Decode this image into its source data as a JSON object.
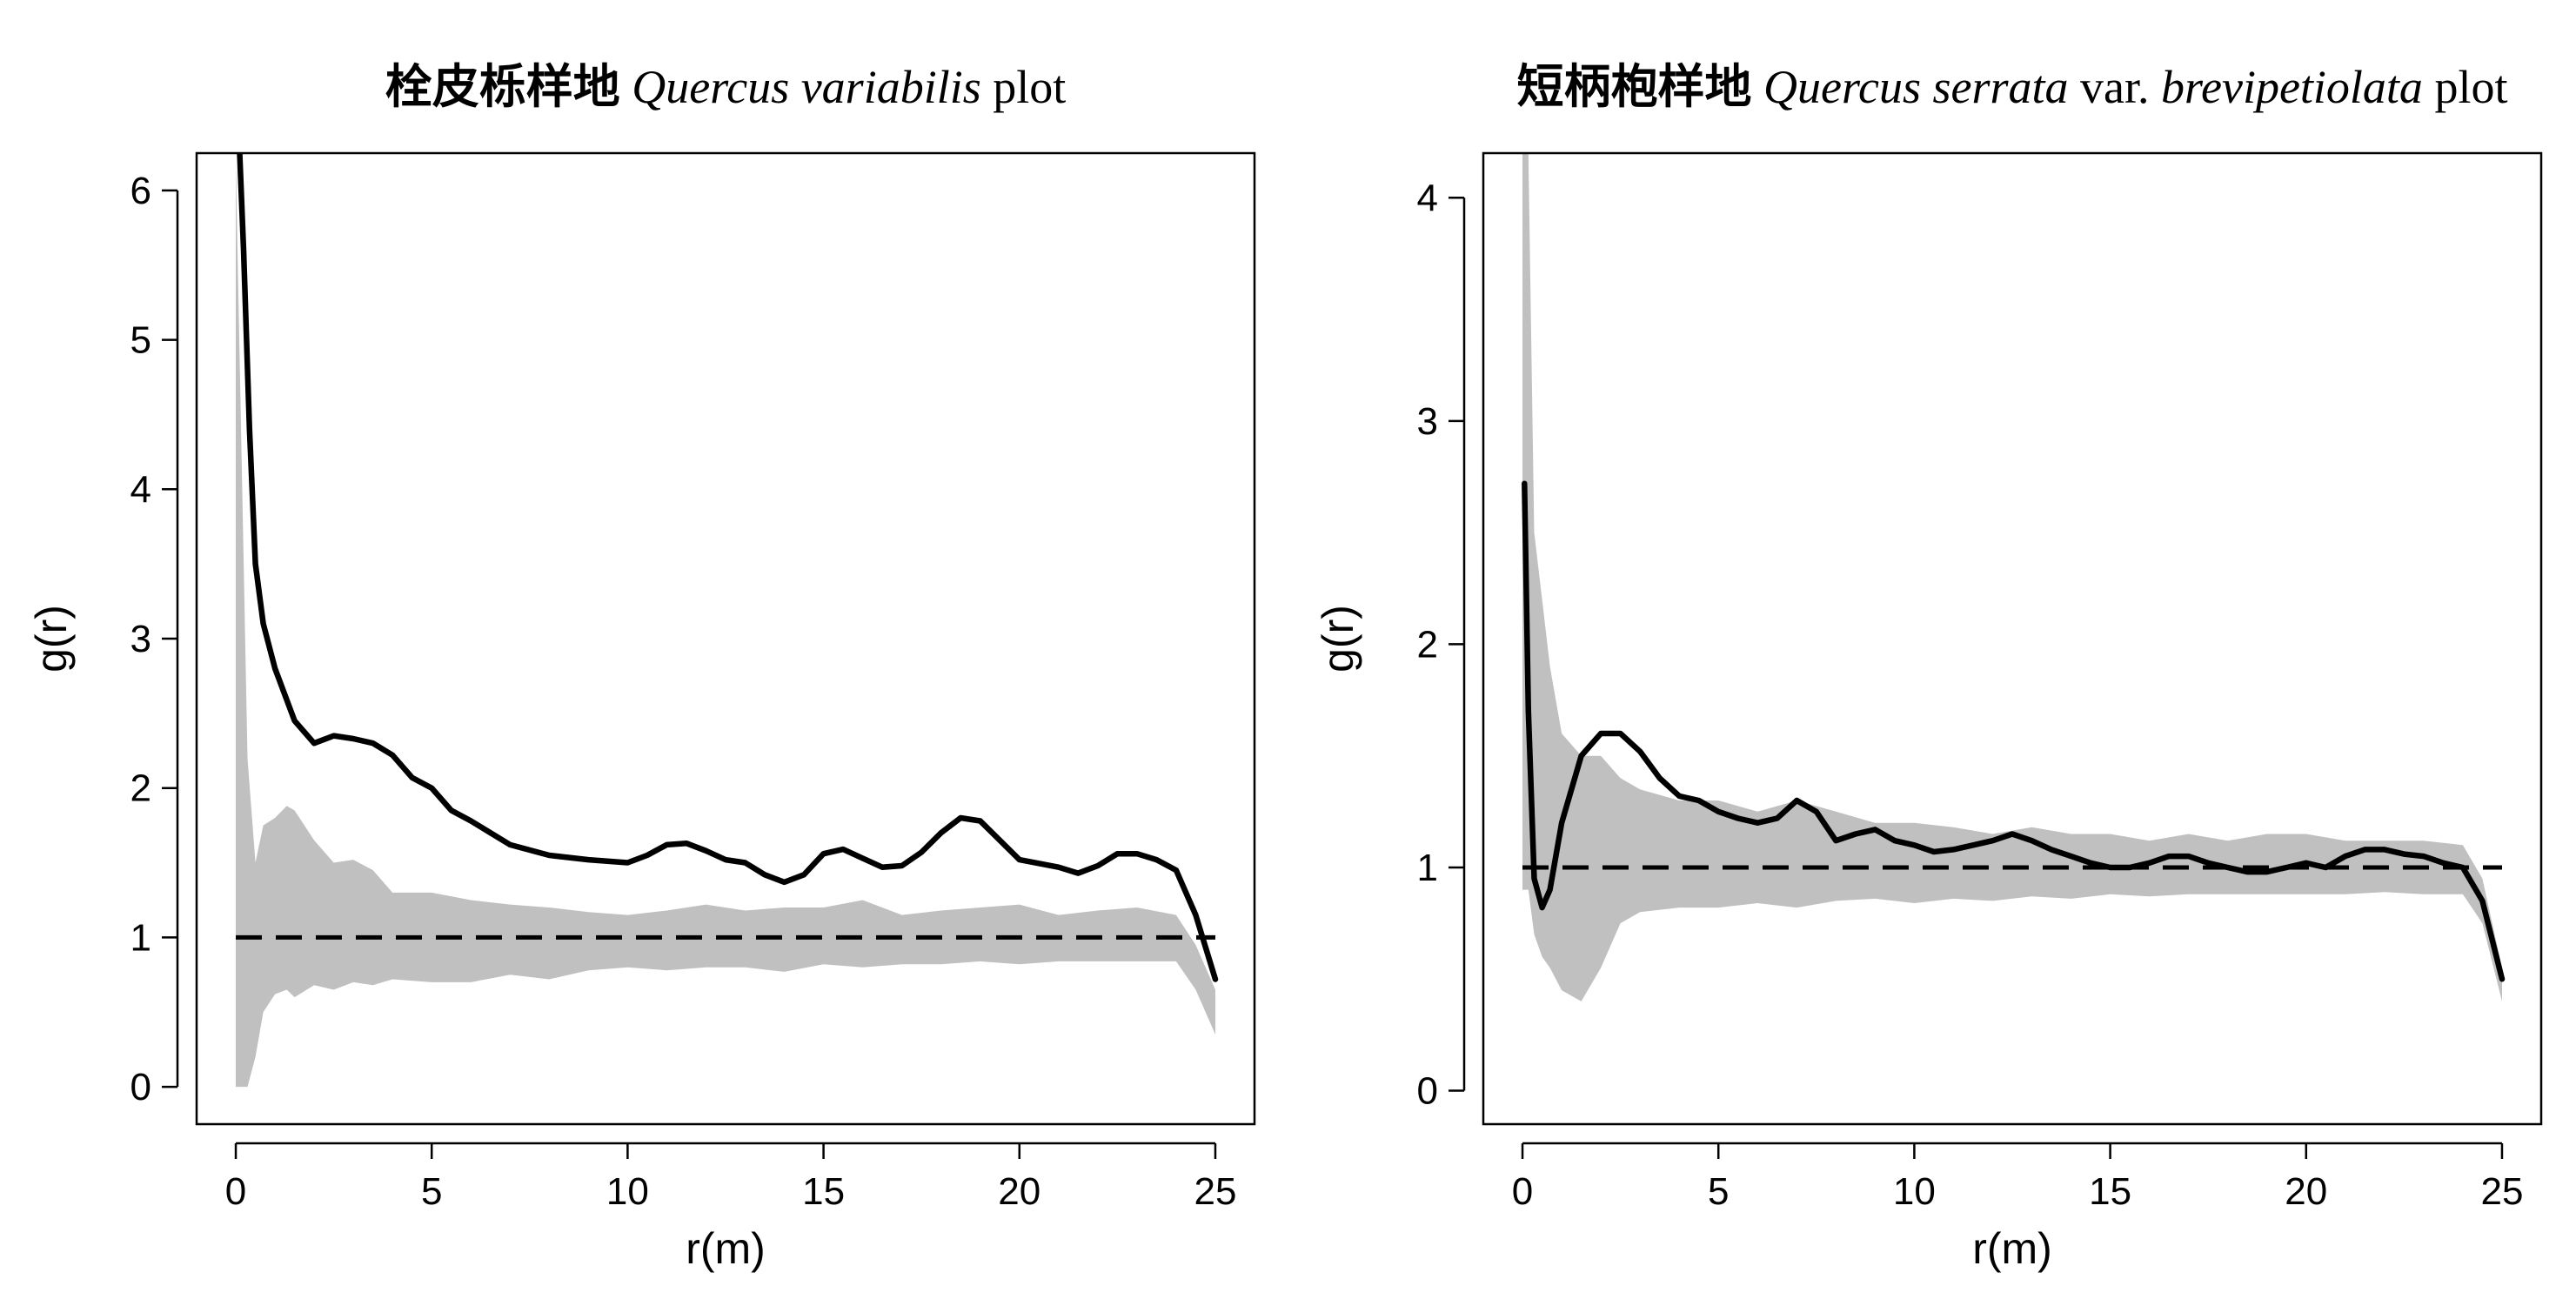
{
  "chart_data": [
    {
      "type": "line",
      "title_parts": [
        {
          "text": "栓皮栎样地 ",
          "style": "cjk"
        },
        {
          "text": "Quercus variabilis",
          "style": "italic"
        },
        {
          "text": "  plot",
          "style": "normal"
        }
      ],
      "xlabel": "r(m)",
      "ylabel": "g(r)",
      "xlim": [
        -1,
        26
      ],
      "ylim": [
        -0.25,
        6.25
      ],
      "xticks": [
        0,
        5,
        10,
        15,
        20,
        25
      ],
      "yticks": [
        0,
        1,
        2,
        3,
        4,
        5,
        6
      ],
      "grid": false,
      "legend": "none",
      "colors": {
        "observed": "#000000",
        "envelope": "#c0c0c0",
        "reference": "#000000"
      },
      "series": [
        {
          "role": "observed",
          "style": "solid",
          "x": [
            0.1,
            0.2,
            0.35,
            0.5,
            0.7,
            1.0,
            1.5,
            2.0,
            2.5,
            3.0,
            3.5,
            4.0,
            4.5,
            5.0,
            5.5,
            6.0,
            6.5,
            7.0,
            8.0,
            9.0,
            10.0,
            10.5,
            11.0,
            11.5,
            12.0,
            12.5,
            13.0,
            13.5,
            14.0,
            14.5,
            15.0,
            15.5,
            16.0,
            16.5,
            17.0,
            17.5,
            18.0,
            18.5,
            19.0,
            19.5,
            20.0,
            21.0,
            21.5,
            22.0,
            22.5,
            23.0,
            23.5,
            24.0,
            24.5,
            25.0
          ],
          "y": [
            6.25,
            5.6,
            4.4,
            3.5,
            3.1,
            2.8,
            2.45,
            2.3,
            2.35,
            2.33,
            2.3,
            2.22,
            2.07,
            2.0,
            1.85,
            1.78,
            1.7,
            1.62,
            1.55,
            1.52,
            1.5,
            1.55,
            1.62,
            1.63,
            1.58,
            1.52,
            1.5,
            1.42,
            1.37,
            1.42,
            1.56,
            1.59,
            1.53,
            1.47,
            1.48,
            1.57,
            1.7,
            1.8,
            1.78,
            1.65,
            1.52,
            1.47,
            1.43,
            1.48,
            1.56,
            1.56,
            1.52,
            1.45,
            1.15,
            0.72
          ]
        },
        {
          "role": "reference",
          "style": "dashed",
          "x": [
            0,
            25
          ],
          "y": [
            1,
            1
          ]
        }
      ],
      "envelope": {
        "x": [
          0,
          0.3,
          0.5,
          0.7,
          1.0,
          1.3,
          1.5,
          2.0,
          2.5,
          3.0,
          3.5,
          4.0,
          5.0,
          6.0,
          7.0,
          8.0,
          9.0,
          10.0,
          11.0,
          12.0,
          13.0,
          14.0,
          15.0,
          16.0,
          17.0,
          18.0,
          19.0,
          20.0,
          21.0,
          22.0,
          23.0,
          24.0,
          24.5,
          25.0
        ],
        "upper": [
          6.2,
          2.2,
          1.5,
          1.75,
          1.8,
          1.88,
          1.85,
          1.65,
          1.5,
          1.52,
          1.45,
          1.3,
          1.3,
          1.25,
          1.22,
          1.2,
          1.17,
          1.15,
          1.18,
          1.22,
          1.18,
          1.2,
          1.2,
          1.25,
          1.15,
          1.18,
          1.2,
          1.22,
          1.15,
          1.18,
          1.2,
          1.15,
          0.95,
          0.65
        ],
        "lower": [
          0,
          0,
          0.2,
          0.5,
          0.62,
          0.65,
          0.6,
          0.68,
          0.65,
          0.7,
          0.68,
          0.72,
          0.7,
          0.7,
          0.75,
          0.72,
          0.78,
          0.8,
          0.78,
          0.8,
          0.8,
          0.77,
          0.82,
          0.8,
          0.82,
          0.82,
          0.84,
          0.82,
          0.84,
          0.84,
          0.84,
          0.84,
          0.65,
          0.35
        ]
      }
    },
    {
      "type": "line",
      "title_parts": [
        {
          "text": "短柄枹样地 ",
          "style": "cjk"
        },
        {
          "text": "Quercus serrata",
          "style": "italic"
        },
        {
          "text": " var. ",
          "style": "normal"
        },
        {
          "text": "brevipetiolata",
          "style": "italic"
        },
        {
          "text": " plot",
          "style": "normal"
        }
      ],
      "xlabel": "r(m)",
      "ylabel": "g(r)",
      "xlim": [
        -1,
        26
      ],
      "ylim": [
        -0.15,
        4.2
      ],
      "xticks": [
        0,
        5,
        10,
        15,
        20,
        25
      ],
      "yticks": [
        0,
        1,
        2,
        3,
        4
      ],
      "grid": false,
      "legend": "none",
      "colors": {
        "observed": "#000000",
        "envelope": "#c0c0c0",
        "reference": "#000000"
      },
      "series": [
        {
          "role": "observed",
          "style": "solid",
          "x": [
            0.05,
            0.15,
            0.3,
            0.5,
            0.7,
            1.0,
            1.5,
            2.0,
            2.5,
            3.0,
            3.5,
            4.0,
            4.5,
            5.0,
            5.5,
            6.0,
            6.5,
            7.0,
            7.5,
            8.0,
            8.5,
            9.0,
            9.5,
            10.0,
            10.5,
            11.0,
            11.5,
            12.0,
            12.5,
            13.0,
            13.5,
            14.0,
            14.5,
            15.0,
            15.5,
            16.0,
            16.5,
            17.0,
            17.5,
            18.0,
            18.5,
            19.0,
            19.5,
            20.0,
            20.5,
            21.0,
            21.5,
            22.0,
            22.5,
            23.0,
            23.5,
            24.0,
            24.5,
            25.0
          ],
          "y": [
            2.72,
            1.7,
            0.95,
            0.82,
            0.9,
            1.2,
            1.5,
            1.6,
            1.6,
            1.52,
            1.4,
            1.32,
            1.3,
            1.25,
            1.22,
            1.2,
            1.22,
            1.3,
            1.25,
            1.12,
            1.15,
            1.17,
            1.12,
            1.1,
            1.07,
            1.08,
            1.1,
            1.12,
            1.15,
            1.12,
            1.08,
            1.05,
            1.02,
            1.0,
            1.0,
            1.02,
            1.05,
            1.05,
            1.02,
            1.0,
            0.98,
            0.98,
            1.0,
            1.02,
            1.0,
            1.05,
            1.08,
            1.08,
            1.06,
            1.05,
            1.02,
            1.0,
            0.85,
            0.5
          ]
        },
        {
          "role": "reference",
          "style": "dashed",
          "x": [
            0,
            25
          ],
          "y": [
            1,
            1
          ]
        }
      ],
      "envelope": {
        "x": [
          0,
          0.15,
          0.3,
          0.5,
          0.7,
          1.0,
          1.5,
          2.0,
          2.5,
          3.0,
          4.0,
          5.0,
          6.0,
          7.0,
          8.0,
          9.0,
          10.0,
          11.0,
          12.0,
          13.0,
          14.0,
          15.0,
          16.0,
          17.0,
          18.0,
          19.0,
          20.0,
          21.0,
          22.0,
          23.0,
          24.0,
          24.5,
          25.0
        ],
        "upper": [
          4.2,
          4.2,
          2.5,
          2.2,
          1.9,
          1.6,
          1.5,
          1.5,
          1.4,
          1.35,
          1.3,
          1.3,
          1.25,
          1.3,
          1.25,
          1.2,
          1.2,
          1.18,
          1.15,
          1.18,
          1.15,
          1.15,
          1.12,
          1.15,
          1.12,
          1.15,
          1.15,
          1.12,
          1.12,
          1.12,
          1.1,
          0.95,
          0.55
        ],
        "lower": [
          0.9,
          0.9,
          0.7,
          0.6,
          0.55,
          0.45,
          0.4,
          0.55,
          0.75,
          0.8,
          0.82,
          0.82,
          0.84,
          0.82,
          0.85,
          0.86,
          0.84,
          0.86,
          0.85,
          0.87,
          0.86,
          0.88,
          0.87,
          0.88,
          0.88,
          0.88,
          0.88,
          0.88,
          0.89,
          0.88,
          0.88,
          0.75,
          0.4
        ]
      }
    }
  ]
}
